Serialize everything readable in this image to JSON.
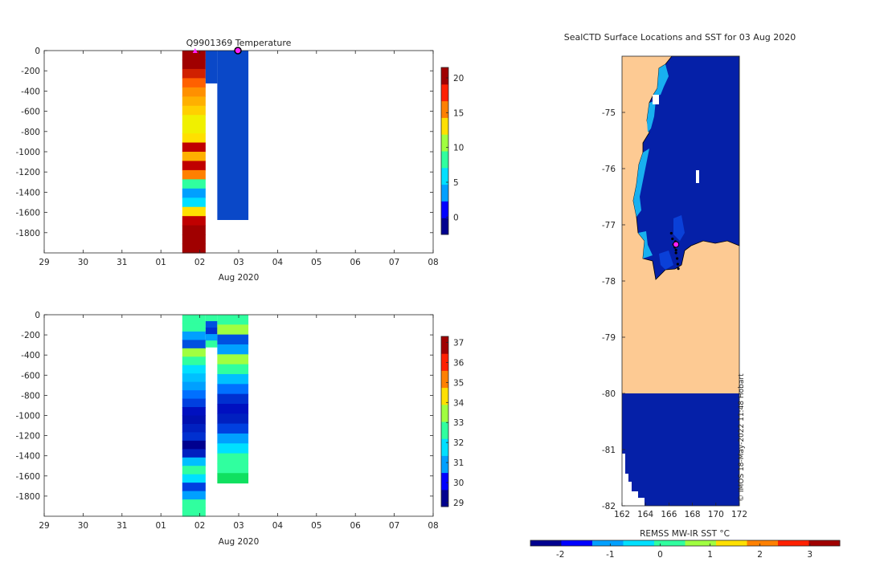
{
  "colors": {
    "jet": [
      "#00008f",
      "#0000ff",
      "#00a0ff",
      "#00e0ff",
      "#30ff9f",
      "#a0ff40",
      "#ffe000",
      "#ff8000",
      "#ff2000",
      "#a00000"
    ],
    "profile_deep_blue": "#0a48c8",
    "land": "#fdca93",
    "ocean_cold": "#0520a8",
    "ocean_blue": "#0a40d8",
    "ice_edge": "#18b0f0",
    "marker_magenta": "#ff20ff"
  },
  "chart_data": [
    {
      "id": "temperature",
      "type": "heatmap",
      "title": "Q9901369  Temperature",
      "xlabel": "Aug 2020",
      "ylabel": "",
      "xticks": [
        "29",
        "30",
        "31",
        "01",
        "02",
        "03",
        "04",
        "05",
        "06",
        "07",
        "08"
      ],
      "yticks": [
        0,
        -200,
        -400,
        -600,
        -800,
        -1000,
        -1200,
        -1400,
        -1600,
        -1800
      ],
      "xlim": [
        0,
        10
      ],
      "ylim": [
        -2000,
        0
      ],
      "colorbar": {
        "ticks": [
          20,
          15,
          10,
          5,
          0
        ],
        "range": [
          -2.5,
          21.5
        ]
      },
      "profiles": [
        {
          "x0": 3.55,
          "x1": 4.15,
          "depth": -2000,
          "colors": [
            "#a00000",
            "#a00000",
            "#d02000",
            "#ff6000",
            "#ff9000",
            "#ffb000",
            "#ffd000",
            "#f0f000",
            "#f0f000",
            "#ffe000",
            "#c00000",
            "#ffb000",
            "#c00000",
            "#ff8000",
            "#30ff9f",
            "#00a0ff",
            "#00e0ff",
            "#ffe000",
            "#c00000",
            "#a00000",
            "#a00000",
            "#a00000"
          ]
        },
        {
          "x0": 4.15,
          "x1": 4.45,
          "depth": -320,
          "colors": [
            "#0a48c8"
          ]
        },
        {
          "x0": 4.45,
          "x1": 5.25,
          "depth": -1670,
          "colors": [
            "#0a48c8"
          ]
        }
      ],
      "markers": [
        {
          "x": 3.88,
          "y": 0,
          "shape": "triangle"
        },
        {
          "x": 4.98,
          "y": 0,
          "shape": "circle"
        }
      ]
    },
    {
      "id": "salinity",
      "type": "heatmap",
      "title": "",
      "xlabel": "Aug 2020",
      "ylabel": "",
      "xticks": [
        "29",
        "30",
        "31",
        "01",
        "02",
        "03",
        "04",
        "05",
        "06",
        "07",
        "08"
      ],
      "yticks": [
        0,
        -200,
        -400,
        -600,
        -800,
        -1000,
        -1200,
        -1400,
        -1600,
        -1800
      ],
      "xlim": [
        0,
        10
      ],
      "ylim": [
        -2000,
        0
      ],
      "colorbar": {
        "ticks": [
          37,
          36,
          35,
          34,
          33,
          32,
          31,
          30,
          29
        ],
        "range": [
          28.8,
          37.3
        ]
      },
      "profiles": [
        {
          "x0": 3.55,
          "x1": 4.15,
          "depth": -2000,
          "colors": [
            "#30ff9f",
            "#30ff9f",
            "#00a0ff",
            "#0050e0",
            "#a0ff40",
            "#30ff9f",
            "#00e0ff",
            "#00c0ff",
            "#00a0ff",
            "#0070ff",
            "#0040e0",
            "#0010c0",
            "#0010b0",
            "#0020c0",
            "#0030d0",
            "#00008f",
            "#0020c0",
            "#00c0ff",
            "#30ff9f",
            "#00e0ff",
            "#0040e0",
            "#00a0ff",
            "#30ff9f",
            "#30ff9f"
          ]
        },
        {
          "x0": 4.15,
          "x1": 4.45,
          "depth": -320,
          "colors": [
            "#30ff9f",
            "#0050e0",
            "#0030d0",
            "#00a0ff",
            "#30ff9f"
          ]
        },
        {
          "x0": 4.45,
          "x1": 5.25,
          "depth": -1670,
          "colors": [
            "#30ff9f",
            "#a0ff40",
            "#0050e0",
            "#00a0ff",
            "#a0ff40",
            "#30ff9f",
            "#00c0ff",
            "#0070ff",
            "#0030d0",
            "#0010c0",
            "#0020c0",
            "#0040e0",
            "#00a0ff",
            "#00e0ff",
            "#30ff9f",
            "#30ff9f",
            "#10e060"
          ]
        }
      ]
    },
    {
      "id": "sst_map",
      "type": "heatmap",
      "title": "SealCTD Surface Locations and SST for 03 Aug 2020",
      "xlabel": "",
      "ylabel": "",
      "xticks": [
        162,
        164,
        166,
        168,
        170,
        172
      ],
      "yticks": [
        -75,
        -76,
        -77,
        -78,
        -79,
        -80,
        -81,
        -82
      ],
      "xlim": [
        162,
        172
      ],
      "ylim": [
        -82,
        -74
      ],
      "colorbar": {
        "label": "REMSS MW-IR SST °C",
        "ticks": [
          -2,
          -1,
          0,
          1,
          2,
          3
        ],
        "range": [
          -2.6,
          3.6
        ],
        "orientation": "horizontal"
      },
      "watermark": "© IMOS 18-May-2022 11:48 Hobart",
      "cast_track": [
        [
          166.2,
          -77.15
        ],
        [
          166.3,
          -77.25
        ],
        [
          166.4,
          -77.35
        ],
        [
          166.5,
          -77.4
        ],
        [
          166.6,
          -77.5
        ],
        [
          166.7,
          -77.6
        ],
        [
          166.75,
          -77.7
        ],
        [
          166.8,
          -77.78
        ],
        [
          166.55,
          -77.3
        ],
        [
          166.6,
          -77.45
        ]
      ],
      "current_location": [
        166.6,
        -77.35
      ]
    }
  ]
}
